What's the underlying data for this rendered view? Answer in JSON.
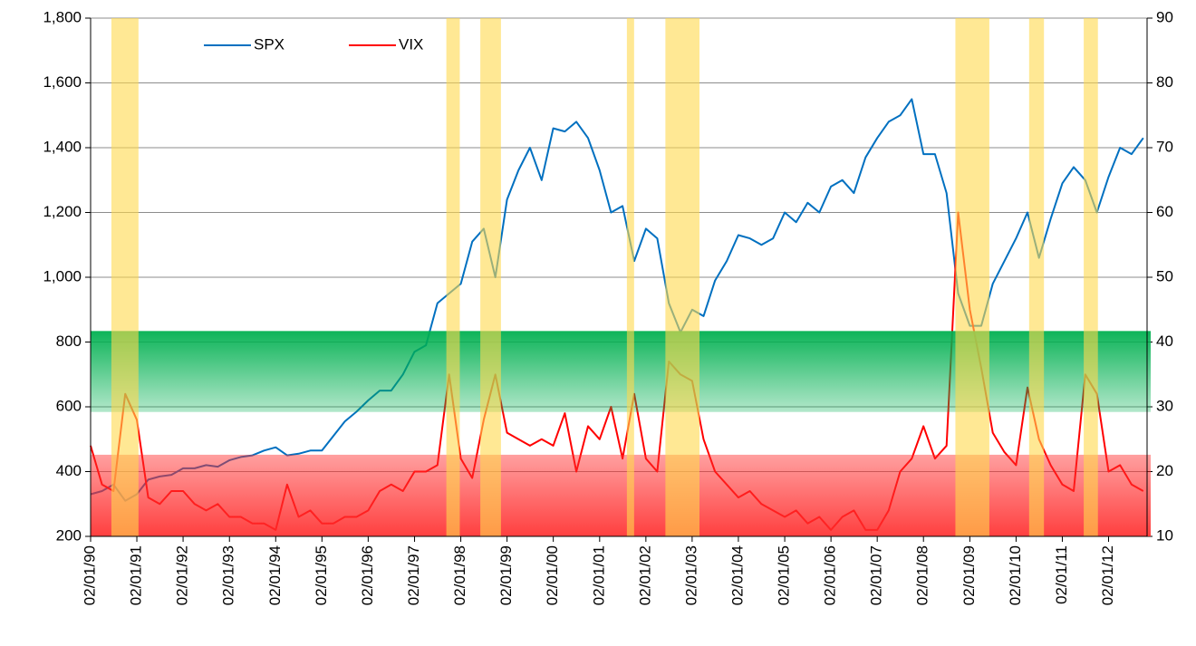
{
  "chart_data": {
    "type": "line",
    "x": [
      "1990-01-02",
      "1990-04-02",
      "1990-07-02",
      "1990-10-02",
      "1991-01-02",
      "1991-04-02",
      "1991-07-02",
      "1991-10-02",
      "1992-01-02",
      "1992-04-02",
      "1992-07-02",
      "1992-10-02",
      "1993-01-02",
      "1993-04-02",
      "1993-07-02",
      "1993-10-02",
      "1994-01-02",
      "1994-04-02",
      "1994-07-02",
      "1994-10-02",
      "1995-01-02",
      "1995-04-02",
      "1995-07-02",
      "1995-10-02",
      "1996-01-02",
      "1996-04-02",
      "1996-07-02",
      "1996-10-02",
      "1997-01-02",
      "1997-04-02",
      "1997-07-02",
      "1997-10-02",
      "1998-01-02",
      "1998-04-02",
      "1998-07-02",
      "1998-10-02",
      "1999-01-02",
      "1999-04-02",
      "1999-07-02",
      "1999-10-02",
      "2000-01-02",
      "2000-04-02",
      "2000-07-02",
      "2000-10-02",
      "2001-01-02",
      "2001-04-02",
      "2001-07-02",
      "2001-10-02",
      "2002-01-02",
      "2002-04-02",
      "2002-07-02",
      "2002-10-02",
      "2003-01-02",
      "2003-04-02",
      "2003-07-02",
      "2003-10-02",
      "2004-01-02",
      "2004-04-02",
      "2004-07-02",
      "2004-10-02",
      "2005-01-02",
      "2005-04-02",
      "2005-07-02",
      "2005-10-02",
      "2006-01-02",
      "2006-04-02",
      "2006-07-02",
      "2006-10-02",
      "2007-01-02",
      "2007-04-02",
      "2007-07-02",
      "2007-10-02",
      "2008-01-02",
      "2008-04-02",
      "2008-07-02",
      "2008-10-02",
      "2009-01-02",
      "2009-04-02",
      "2009-07-02",
      "2009-10-02",
      "2010-01-02",
      "2010-04-02",
      "2010-07-02",
      "2010-10-02",
      "2011-01-02",
      "2011-04-02",
      "2011-07-02",
      "2011-10-02",
      "2012-01-02",
      "2012-04-02",
      "2012-07-02",
      "2012-10-02"
    ],
    "series": [
      {
        "name": "SPX",
        "color": "#0070c0",
        "values": [
          330,
          340,
          360,
          310,
          330,
          375,
          385,
          390,
          410,
          410,
          420,
          415,
          435,
          445,
          450,
          465,
          475,
          450,
          455,
          465,
          465,
          510,
          555,
          585,
          620,
          650,
          650,
          700,
          770,
          790,
          920,
          950,
          980,
          1110,
          1150,
          1000,
          1240,
          1330,
          1400,
          1300,
          1460,
          1450,
          1480,
          1430,
          1330,
          1200,
          1220,
          1050,
          1150,
          1120,
          920,
          830,
          900,
          880,
          990,
          1050,
          1130,
          1120,
          1100,
          1120,
          1200,
          1170,
          1230,
          1200,
          1280,
          1300,
          1260,
          1370,
          1430,
          1480,
          1500,
          1550,
          1380,
          1380,
          1260,
          950,
          850,
          850,
          980,
          1050,
          1120,
          1200,
          1060,
          1180,
          1290,
          1340,
          1300,
          1200,
          1310,
          1400,
          1380,
          1430
        ]
      },
      {
        "name": "VIX",
        "color": "#ff0000",
        "axis": "y2",
        "values": [
          24,
          18,
          17,
          32,
          28,
          16,
          15,
          17,
          17,
          15,
          14,
          15,
          13,
          13,
          12,
          12,
          11,
          18,
          13,
          14,
          12,
          12,
          13,
          13,
          14,
          17,
          18,
          17,
          20,
          20,
          21,
          35,
          22,
          19,
          28,
          35,
          26,
          25,
          24,
          25,
          24,
          29,
          20,
          27,
          25,
          30,
          22,
          32,
          22,
          20,
          37,
          35,
          34,
          25,
          20,
          18,
          16,
          17,
          15,
          14,
          13,
          14,
          12,
          13,
          11,
          13,
          14,
          11,
          11,
          14,
          20,
          22,
          27,
          22,
          24,
          60,
          45,
          36,
          26,
          23,
          21,
          33,
          25,
          21,
          18,
          17,
          35,
          32,
          20,
          21,
          18,
          17
        ]
      }
    ],
    "xlim": [
      "1990-01-02",
      "2012-11-01"
    ],
    "xticks": [
      {
        "value": "1990-01-02",
        "label": "02/01/90"
      },
      {
        "value": "1991-01-02",
        "label": "02/01/91"
      },
      {
        "value": "1992-01-02",
        "label": "02/01/92"
      },
      {
        "value": "1993-01-02",
        "label": "02/01/93"
      },
      {
        "value": "1994-01-02",
        "label": "02/01/94"
      },
      {
        "value": "1995-01-02",
        "label": "02/01/95"
      },
      {
        "value": "1996-01-02",
        "label": "02/01/96"
      },
      {
        "value": "1997-01-02",
        "label": "02/01/97"
      },
      {
        "value": "1998-01-02",
        "label": "02/01/98"
      },
      {
        "value": "1999-01-02",
        "label": "02/01/99"
      },
      {
        "value": "2000-01-02",
        "label": "02/01/00"
      },
      {
        "value": "2001-01-02",
        "label": "02/01/01"
      },
      {
        "value": "2002-01-02",
        "label": "02/01/02"
      },
      {
        "value": "2003-01-02",
        "label": "02/01/03"
      },
      {
        "value": "2004-01-02",
        "label": "02/01/04"
      },
      {
        "value": "2005-01-02",
        "label": "02/01/05"
      },
      {
        "value": "2006-01-02",
        "label": "02/01/06"
      },
      {
        "value": "2007-01-02",
        "label": "02/01/07"
      },
      {
        "value": "2008-01-02",
        "label": "02/01/08"
      },
      {
        "value": "2009-01-02",
        "label": "02/01/09"
      },
      {
        "value": "2010-01-02",
        "label": "02/01/10"
      },
      {
        "value": "2011-01-02",
        "label": "02/01/11"
      },
      {
        "value": "2012-01-02",
        "label": "02/01/12"
      }
    ],
    "ylim": [
      200,
      1800
    ],
    "yticks": [
      200,
      400,
      600,
      800,
      {
        "value": 1000,
        "label": "1,000"
      },
      {
        "value": 1200,
        "label": "1,200"
      },
      {
        "value": 1400,
        "label": "1,400"
      },
      {
        "value": 1600,
        "label": "1,600"
      },
      {
        "value": 1800,
        "label": "1,800"
      }
    ],
    "y2lim": [
      10,
      90
    ],
    "y2ticks": [
      10,
      20,
      30,
      40,
      50,
      60,
      70,
      80,
      90
    ],
    "grid": true,
    "legend": "top",
    "horizontal_bands": [
      {
        "y2lim": [
          29.2,
          41.7
        ],
        "color": "#00b050"
      },
      {
        "y2lim": [
          10,
          22.6
        ],
        "color": "#ff2a2a"
      }
    ],
    "highlight_color": "#ffd84d",
    "highlight_periods": [
      {
        "start": "1990-06-15",
        "end": "1991-01-15"
      },
      {
        "start": "1997-09-10",
        "end": "1997-12-25"
      },
      {
        "start": "1998-06-05",
        "end": "1998-11-15"
      },
      {
        "start": "2001-08-05",
        "end": "2001-10-01"
      },
      {
        "start": "2002-06-05",
        "end": "2003-03-01"
      },
      {
        "start": "2008-09-10",
        "end": "2009-06-05"
      },
      {
        "start": "2010-04-15",
        "end": "2010-08-10"
      },
      {
        "start": "2011-06-20",
        "end": "2011-10-10"
      }
    ]
  }
}
